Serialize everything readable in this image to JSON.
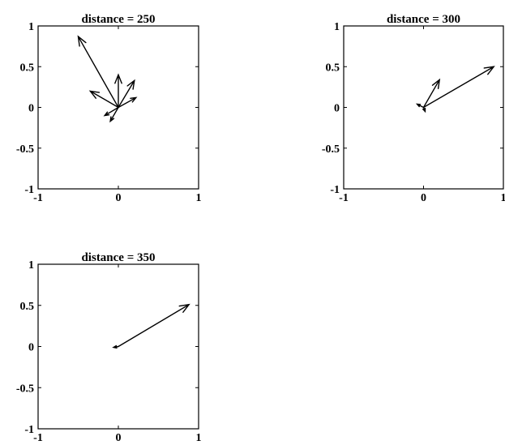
{
  "chart_data": [
    {
      "type": "quiver",
      "title": "distance = 250",
      "xlim": [
        -1,
        1
      ],
      "ylim": [
        -1,
        1
      ],
      "xticks": [
        "-1",
        "0",
        "1"
      ],
      "yticks": [
        "1",
        "0.5",
        "0",
        "-0.5",
        "-1"
      ],
      "grid": false,
      "vectors": [
        {
          "x0": 0,
          "y0": 0,
          "dx": -0.5,
          "dy": 0.87
        },
        {
          "x0": 0,
          "y0": 0,
          "dx": 0.0,
          "dy": 0.4
        },
        {
          "x0": 0,
          "y0": 0,
          "dx": 0.2,
          "dy": 0.33
        },
        {
          "x0": 0,
          "y0": 0,
          "dx": -0.35,
          "dy": 0.2
        },
        {
          "x0": 0,
          "y0": 0,
          "dx": 0.22,
          "dy": 0.12
        },
        {
          "x0": 0,
          "y0": 0,
          "dx": -0.17,
          "dy": -0.1
        },
        {
          "x0": 0,
          "y0": 0,
          "dx": -0.1,
          "dy": -0.17
        }
      ]
    },
    {
      "type": "quiver",
      "title": "distance = 300",
      "xlim": [
        -1,
        1
      ],
      "ylim": [
        -1,
        1
      ],
      "xticks": [
        "-1",
        "0",
        "1"
      ],
      "yticks": [
        "1",
        "0.5",
        "0",
        "-0.5",
        "-1"
      ],
      "grid": false,
      "vectors": [
        {
          "x0": 0,
          "y0": 0,
          "dx": 0.88,
          "dy": 0.5
        },
        {
          "x0": 0,
          "y0": 0,
          "dx": 0.2,
          "dy": 0.34
        },
        {
          "x0": 0,
          "y0": 0,
          "dx": -0.08,
          "dy": 0.04
        },
        {
          "x0": 0,
          "y0": 0,
          "dx": 0.02,
          "dy": -0.05
        }
      ]
    },
    {
      "type": "quiver",
      "title": "distance = 350",
      "xlim": [
        -1,
        1
      ],
      "ylim": [
        -1,
        1
      ],
      "xticks": [
        "-1",
        "0",
        "1"
      ],
      "yticks": [
        "1",
        "0.5",
        "0",
        "-0.5",
        "-1"
      ],
      "grid": false,
      "vectors": [
        {
          "x0": 0,
          "y0": 0,
          "dx": 0.88,
          "dy": 0.51
        },
        {
          "x0": 0,
          "y0": 0,
          "dx": -0.06,
          "dy": -0.01
        }
      ]
    }
  ]
}
